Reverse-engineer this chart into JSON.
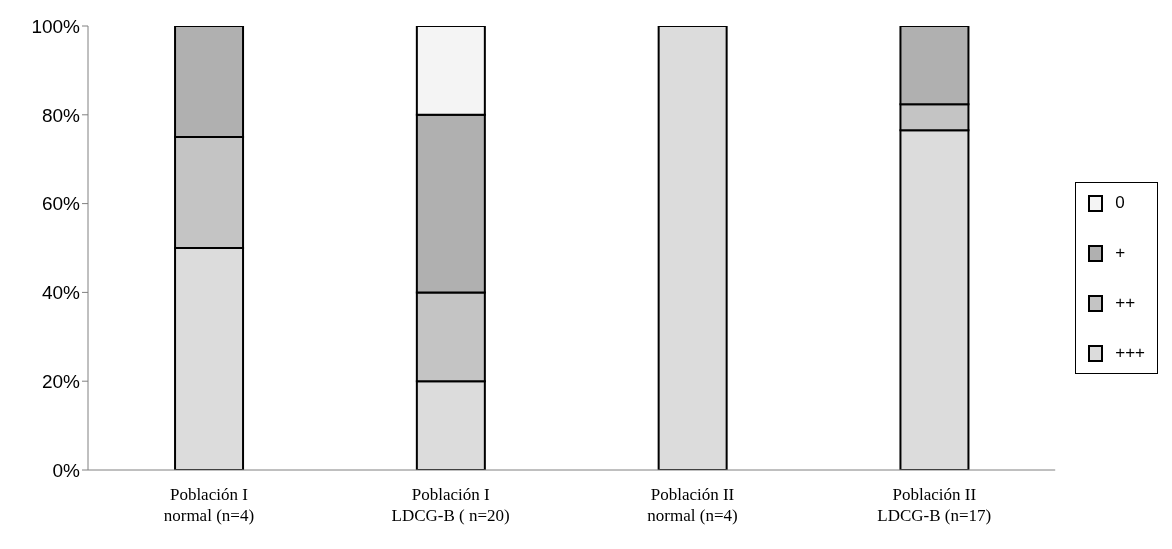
{
  "chart_data": {
    "type": "bar",
    "stacked": true,
    "categories": [
      "Población I\nnormal (n=4)",
      "Población I\nLDCG-B ( n=20)",
      "Población II\nnormal (n=4)",
      "Población II\nLDCG-B (n=17)"
    ],
    "series": [
      {
        "name": "+++",
        "color": "#dcdcdc",
        "values": [
          50,
          20,
          100,
          76.5
        ]
      },
      {
        "name": "++",
        "color": "#c4c4c4",
        "values": [
          25,
          20,
          0,
          5.9
        ]
      },
      {
        "name": "+",
        "color": "#b0b0b0",
        "values": [
          25,
          40,
          0,
          17.6
        ]
      },
      {
        "name": "0",
        "color": "#f4f4f4",
        "values": [
          0,
          20,
          0,
          0
        ]
      }
    ],
    "ylim": [
      0,
      100
    ],
    "yticks": [
      {
        "value": 0,
        "label": "0%"
      },
      {
        "value": 20,
        "label": "20%"
      },
      {
        "value": 40,
        "label": "40%"
      },
      {
        "value": 60,
        "label": "60%"
      },
      {
        "value": 80,
        "label": "80%"
      },
      {
        "value": 100,
        "label": "100%"
      }
    ],
    "grid": false,
    "legend": "right"
  }
}
